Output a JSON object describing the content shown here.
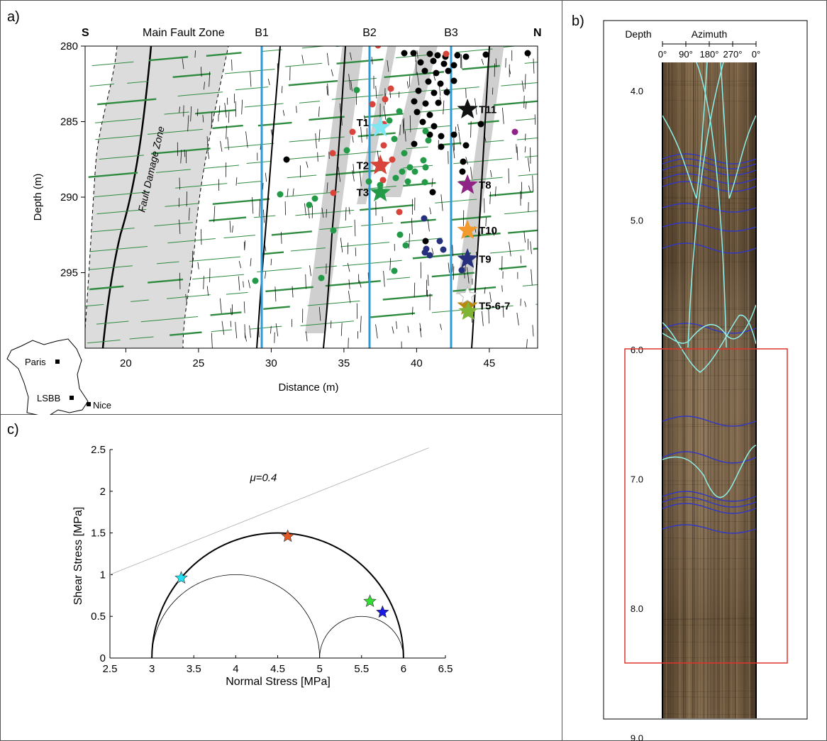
{
  "panel_a": {
    "letter": "a)",
    "label_s": "S",
    "label_n": "N",
    "main_fault_zone": "Main Fault Zone",
    "fault_damage_zone": "Fault Damage Zone",
    "boreholes": [
      "B1",
      "B2",
      "B3"
    ],
    "xlabel": "Distance (m)",
    "ylabel": "Depth (m)",
    "x_ticks": [
      "20",
      "25",
      "30",
      "35",
      "40",
      "45"
    ],
    "y_ticks": [
      "280",
      "285",
      "290",
      "295"
    ],
    "map_labels": {
      "paris": "Paris",
      "lsbb": "LSBB",
      "nice": "Nice"
    },
    "tests": [
      {
        "label": "T1",
        "x": 37.5,
        "y": 285.4,
        "color": "#7fe6f2"
      },
      {
        "label": "T2",
        "x": 37.5,
        "y": 287.9,
        "color": "#d8433a"
      },
      {
        "label": "T3",
        "x": 37.5,
        "y": 289.7,
        "color": "#229a48"
      },
      {
        "label": "T11",
        "x": 43.5,
        "y": 284.2,
        "color": "#111111"
      },
      {
        "label": "T8",
        "x": 43.5,
        "y": 289.2,
        "color": "#8f2486"
      },
      {
        "label": "T10",
        "x": 43.5,
        "y": 292.2,
        "color": "#f39a2e"
      },
      {
        "label": "T9",
        "x": 43.5,
        "y": 294.1,
        "color": "#27307c"
      },
      {
        "label": "T5-6-7",
        "x": 43.5,
        "y": 297.2,
        "color": "#b7870f"
      }
    ],
    "colors": {
      "borehole": "#2e9bd6",
      "bedding": "#2e8b3f",
      "zone": "#d9d9d9"
    }
  },
  "panel_b": {
    "letter": "b)",
    "depth_label": "Depth",
    "azimuth_label": "Azimuth",
    "azimuth_ticks": [
      "0°",
      "90°",
      "180°",
      "270°",
      "0°"
    ],
    "depth_ticks": [
      "4.0",
      "5.0",
      "6.0",
      "7.0",
      "8.0",
      "9.0"
    ],
    "colors": {
      "fracture": "#8ef0ea",
      "bedding": "#2f36c8",
      "box": "#e0332b"
    }
  },
  "panel_c": {
    "letter": "c)",
    "mu_label": "μ=0.4"
  },
  "chart_data": {
    "type": "scatter",
    "title": "",
    "xlabel": "Normal Stress [MPa]",
    "ylabel": "Shear Stress [MPa]",
    "xlim": [
      2.5,
      6.5
    ],
    "ylim": [
      0,
      2.5
    ],
    "x_ticks": [
      "2.5",
      "3",
      "3.5",
      "4",
      "4.5",
      "5",
      "5.5",
      "6",
      "6.5"
    ],
    "y_ticks": [
      "0",
      "0.5",
      "1",
      "1.5",
      "2",
      "2.5"
    ],
    "circles": [
      {
        "center": 4.5,
        "radius": 1.5
      },
      {
        "center": 4.0,
        "radius": 1.0
      },
      {
        "center": 5.5,
        "radius": 0.5
      }
    ],
    "friction_line": {
      "mu": 0.4,
      "x_range": [
        2.5,
        6.3
      ]
    },
    "points": [
      {
        "x": 3.35,
        "y": 0.96,
        "color": "#22e0f0"
      },
      {
        "x": 4.62,
        "y": 1.46,
        "color": "#e35a26"
      },
      {
        "x": 5.6,
        "y": 0.68,
        "color": "#33dd33"
      },
      {
        "x": 5.75,
        "y": 0.55,
        "color": "#1a1ae0"
      }
    ]
  }
}
